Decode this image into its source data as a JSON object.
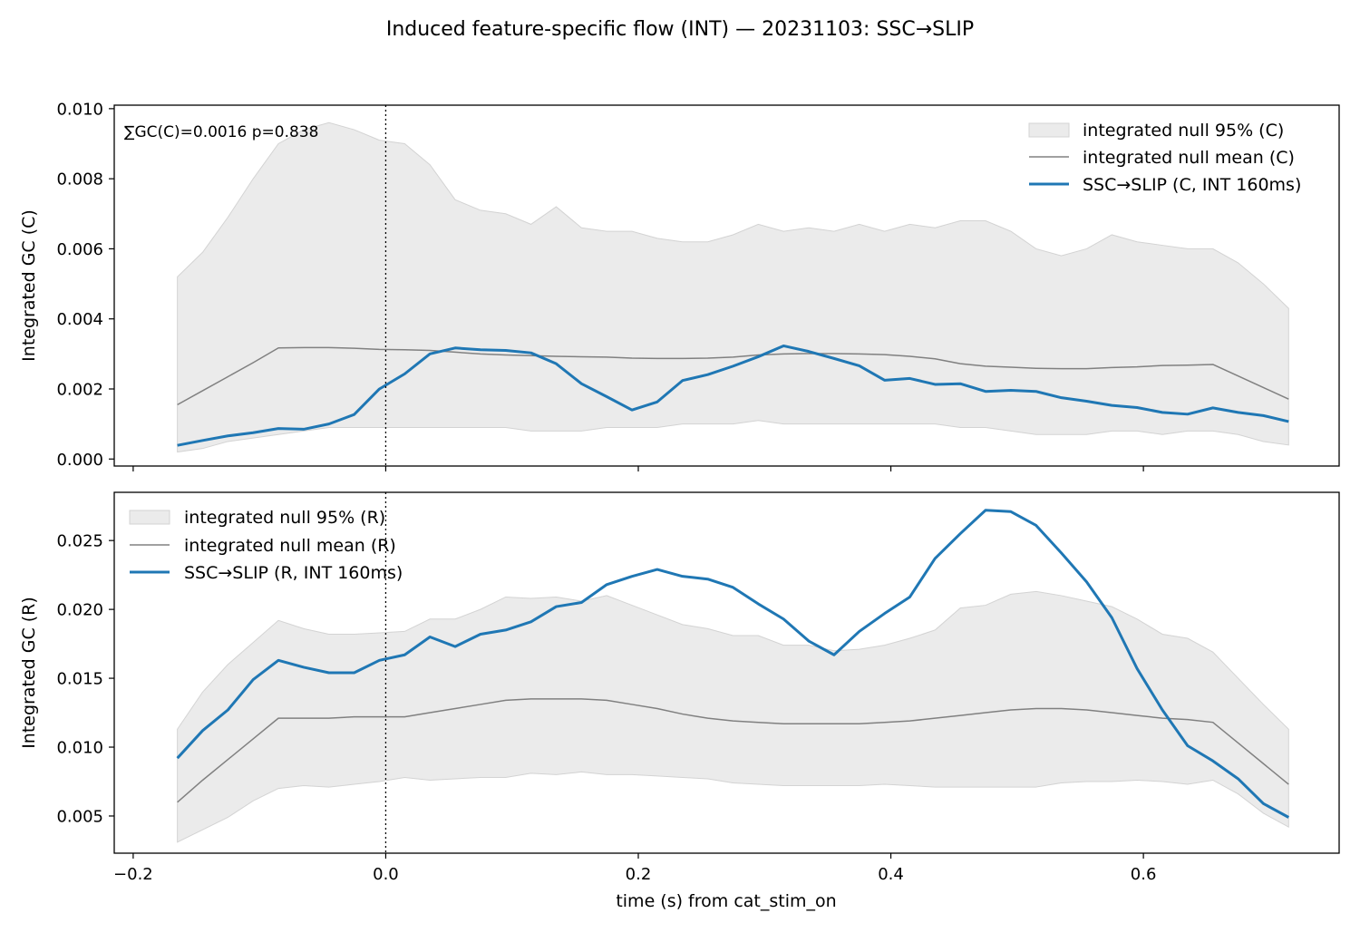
{
  "figure": {
    "suptitle": "Induced feature-specific flow (INT) — 20231103: SSC→SLIP",
    "xlabel": "time (s) from cat_stim_on",
    "x_ticks": [
      "−0.2",
      "0.0",
      "0.2",
      "0.4",
      "0.6"
    ]
  },
  "colors": {
    "signal": "#1f77b4",
    "null_mean": "#808080",
    "null_band": "#d3d3d3",
    "band_opacity": 0.45
  },
  "chart_data": [
    {
      "type": "line",
      "panel": "top",
      "ylabel": "Integrated GC (C)",
      "annotation": "∑GC(C)=0.0016  p=0.838",
      "xlim": [
        -0.215,
        0.755
      ],
      "ylim": [
        -0.0002,
        0.0101
      ],
      "y_ticks": [
        "0.000",
        "0.002",
        "0.004",
        "0.006",
        "0.008",
        "0.010"
      ],
      "vline_x": 0.0,
      "legend_position": "top-right",
      "x": [
        -0.165,
        -0.145,
        -0.125,
        -0.105,
        -0.085,
        -0.065,
        -0.045,
        -0.025,
        -0.005,
        0.015,
        0.035,
        0.055,
        0.075,
        0.095,
        0.115,
        0.135,
        0.155,
        0.175,
        0.195,
        0.215,
        0.235,
        0.255,
        0.275,
        0.295,
        0.315,
        0.335,
        0.355,
        0.375,
        0.395,
        0.415,
        0.435,
        0.455,
        0.475,
        0.495,
        0.515,
        0.535,
        0.555,
        0.575,
        0.595,
        0.615,
        0.635,
        0.655,
        0.675,
        0.695,
        0.715
      ],
      "series": [
        {
          "name": "integrated null 95% (C)",
          "kind": "band",
          "upper": [
            0.0052,
            0.0059,
            0.0069,
            0.008,
            0.009,
            0.0094,
            0.0096,
            0.0094,
            0.0091,
            0.009,
            0.0084,
            0.0074,
            0.0071,
            0.007,
            0.0067,
            0.0072,
            0.0066,
            0.0065,
            0.0065,
            0.0063,
            0.0062,
            0.0062,
            0.0064,
            0.0067,
            0.0065,
            0.0066,
            0.0065,
            0.0067,
            0.0065,
            0.0067,
            0.0066,
            0.0068,
            0.0068,
            0.0065,
            0.006,
            0.0058,
            0.006,
            0.0064,
            0.0062,
            0.0061,
            0.006,
            0.006,
            0.0056,
            0.005,
            0.0043
          ],
          "lower": [
            0.0002,
            0.0003,
            0.0005,
            0.0006,
            0.0007,
            0.0008,
            0.0009,
            0.0009,
            0.0009,
            0.0009,
            0.0009,
            0.0009,
            0.0009,
            0.0009,
            0.0008,
            0.0008,
            0.0008,
            0.0009,
            0.0009,
            0.0009,
            0.001,
            0.001,
            0.001,
            0.0011,
            0.001,
            0.001,
            0.001,
            0.001,
            0.001,
            0.001,
            0.001,
            0.0009,
            0.0009,
            0.0008,
            0.0007,
            0.0007,
            0.0007,
            0.0008,
            0.0008,
            0.0007,
            0.0008,
            0.0008,
            0.0007,
            0.0005,
            0.0004
          ]
        },
        {
          "name": "integrated null mean (C)",
          "kind": "mean",
          "values": [
            0.00155,
            0.00195,
            0.00235,
            0.00275,
            0.00317,
            0.00318,
            0.00318,
            0.00316,
            0.00313,
            0.00312,
            0.0031,
            0.00305,
            0.003,
            0.00297,
            0.00295,
            0.00293,
            0.00292,
            0.00291,
            0.00288,
            0.00287,
            0.00287,
            0.00288,
            0.00291,
            0.00297,
            0.003,
            0.00301,
            0.00301,
            0.003,
            0.00298,
            0.00293,
            0.00286,
            0.00272,
            0.00265,
            0.00262,
            0.00259,
            0.00258,
            0.00258,
            0.00261,
            0.00263,
            0.00267,
            0.00268,
            0.0027,
            0.00237,
            0.00204,
            0.00171
          ]
        },
        {
          "name": "SSC→SLIP (C, INT 160ms)",
          "kind": "signal",
          "values": [
            0.00039,
            0.00053,
            0.00066,
            0.00075,
            0.00087,
            0.00085,
            0.001,
            0.00127,
            0.002,
            0.00243,
            0.003,
            0.00317,
            0.00312,
            0.0031,
            0.00303,
            0.00272,
            0.00215,
            0.00178,
            0.0014,
            0.00163,
            0.00224,
            0.00241,
            0.00265,
            0.00292,
            0.00323,
            0.00307,
            0.00287,
            0.00266,
            0.00225,
            0.0023,
            0.00213,
            0.00215,
            0.00193,
            0.00196,
            0.00193,
            0.00175,
            0.00165,
            0.00153,
            0.00147,
            0.00133,
            0.00128,
            0.00146,
            0.00133,
            0.00124,
            0.00107
          ]
        }
      ]
    },
    {
      "type": "line",
      "panel": "bottom",
      "ylabel": "Integrated GC (R)",
      "xlim": [
        -0.215,
        0.755
      ],
      "ylim": [
        0.0023,
        0.0285
      ],
      "y_ticks": [
        "0.005",
        "0.010",
        "0.015",
        "0.020",
        "0.025"
      ],
      "vline_x": 0.0,
      "legend_position": "top-left",
      "x": [
        -0.165,
        -0.145,
        -0.125,
        -0.105,
        -0.085,
        -0.065,
        -0.045,
        -0.025,
        -0.005,
        0.015,
        0.035,
        0.055,
        0.075,
        0.095,
        0.115,
        0.135,
        0.155,
        0.175,
        0.195,
        0.215,
        0.235,
        0.255,
        0.275,
        0.295,
        0.315,
        0.335,
        0.355,
        0.375,
        0.395,
        0.415,
        0.435,
        0.455,
        0.475,
        0.495,
        0.515,
        0.535,
        0.555,
        0.575,
        0.595,
        0.615,
        0.635,
        0.655,
        0.675,
        0.695,
        0.715
      ],
      "series": [
        {
          "name": "integrated null 95% (R)",
          "kind": "band",
          "upper": [
            0.0113,
            0.014,
            0.016,
            0.0176,
            0.0192,
            0.0186,
            0.0182,
            0.0182,
            0.0183,
            0.0184,
            0.0193,
            0.0193,
            0.02,
            0.0209,
            0.0208,
            0.0209,
            0.0206,
            0.021,
            0.0203,
            0.0196,
            0.0189,
            0.0186,
            0.0181,
            0.0181,
            0.0174,
            0.0174,
            0.017,
            0.0171,
            0.0174,
            0.0179,
            0.0185,
            0.0201,
            0.0203,
            0.0211,
            0.0213,
            0.021,
            0.0206,
            0.0202,
            0.0193,
            0.0182,
            0.0179,
            0.0169,
            0.015,
            0.0131,
            0.0113
          ],
          "lower": [
            0.0031,
            0.004,
            0.0049,
            0.0061,
            0.007,
            0.0072,
            0.0071,
            0.0073,
            0.0075,
            0.0078,
            0.0076,
            0.0077,
            0.0078,
            0.0078,
            0.0081,
            0.008,
            0.0082,
            0.008,
            0.008,
            0.0079,
            0.0078,
            0.0077,
            0.0074,
            0.0073,
            0.0072,
            0.0072,
            0.0072,
            0.0072,
            0.0073,
            0.0072,
            0.0071,
            0.0071,
            0.0071,
            0.0071,
            0.0071,
            0.0074,
            0.0075,
            0.0075,
            0.0076,
            0.0075,
            0.0073,
            0.0076,
            0.0066,
            0.0052,
            0.0042
          ]
        },
        {
          "name": "integrated null mean (R)",
          "kind": "mean",
          "values": [
            0.006,
            0.0076,
            0.0091,
            0.0106,
            0.0121,
            0.0121,
            0.0121,
            0.0122,
            0.0122,
            0.0122,
            0.0125,
            0.0128,
            0.0131,
            0.0134,
            0.0135,
            0.0135,
            0.0135,
            0.0134,
            0.0131,
            0.0128,
            0.0124,
            0.0121,
            0.0119,
            0.0118,
            0.0117,
            0.0117,
            0.0117,
            0.0117,
            0.0118,
            0.0119,
            0.0121,
            0.0123,
            0.0125,
            0.0127,
            0.0128,
            0.0128,
            0.0127,
            0.0125,
            0.0123,
            0.0121,
            0.012,
            0.0118,
            0.0103,
            0.0088,
            0.0073
          ]
        },
        {
          "name": "SSC→SLIP (R, INT 160ms)",
          "kind": "signal",
          "values": [
            0.0092,
            0.0112,
            0.0127,
            0.0149,
            0.0163,
            0.0158,
            0.0154,
            0.0154,
            0.0163,
            0.0167,
            0.018,
            0.0173,
            0.0182,
            0.0185,
            0.0191,
            0.0202,
            0.0205,
            0.0218,
            0.0224,
            0.0229,
            0.0224,
            0.0222,
            0.0216,
            0.0204,
            0.0193,
            0.0177,
            0.0167,
            0.0184,
            0.0197,
            0.0209,
            0.0237,
            0.0255,
            0.0272,
            0.0271,
            0.0261,
            0.0241,
            0.022,
            0.0194,
            0.0157,
            0.0127,
            0.0101,
            0.009,
            0.0077,
            0.0059,
            0.0049
          ]
        }
      ]
    }
  ]
}
